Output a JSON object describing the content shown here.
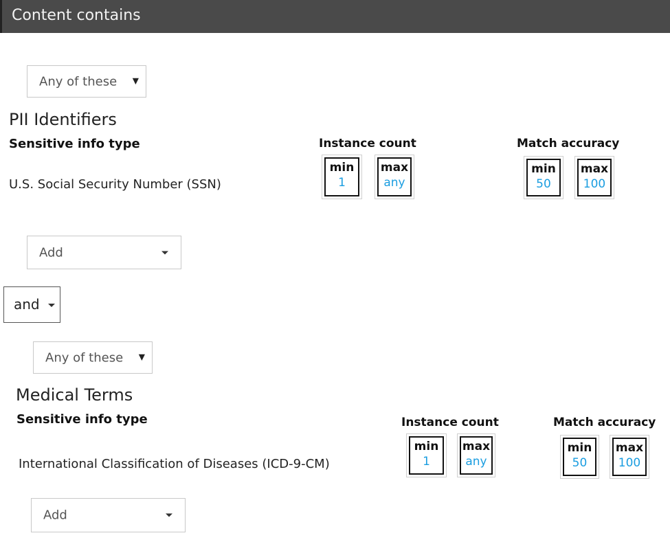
{
  "header": {
    "title": "Content contains"
  },
  "groups": [
    {
      "operator": "Any of these",
      "title": "PII Identifiers",
      "column_type": "Sensitive info type",
      "column_instance": "Instance count",
      "column_accuracy": "Match accuracy",
      "rows": [
        {
          "name": "U.S. Social Security Number (SSN)",
          "instance_min_label": "min",
          "instance_min": "1",
          "instance_max_label": "max",
          "instance_max": "any",
          "accuracy_min_label": "min",
          "accuracy_min": "50",
          "accuracy_max_label": "max",
          "accuracy_max": "100"
        }
      ],
      "add_label": "Add"
    },
    {
      "operator": "Any of these",
      "title": "Medical Terms",
      "column_type": "Sensitive info type",
      "column_instance": "Instance count",
      "column_accuracy": "Match accuracy",
      "rows": [
        {
          "name": "International Classification of Diseases (ICD-9-CM)",
          "instance_min_label": "min",
          "instance_min": "1",
          "instance_max_label": "max",
          "instance_max": "any",
          "accuracy_min_label": "min",
          "accuracy_min": "50",
          "accuracy_max_label": "max",
          "accuracy_max": "100"
        }
      ],
      "add_label": "Add"
    }
  ],
  "joiner": "and",
  "colors": {
    "header_bg": "#4a4a4a",
    "value_blue": "#1a9de0"
  }
}
